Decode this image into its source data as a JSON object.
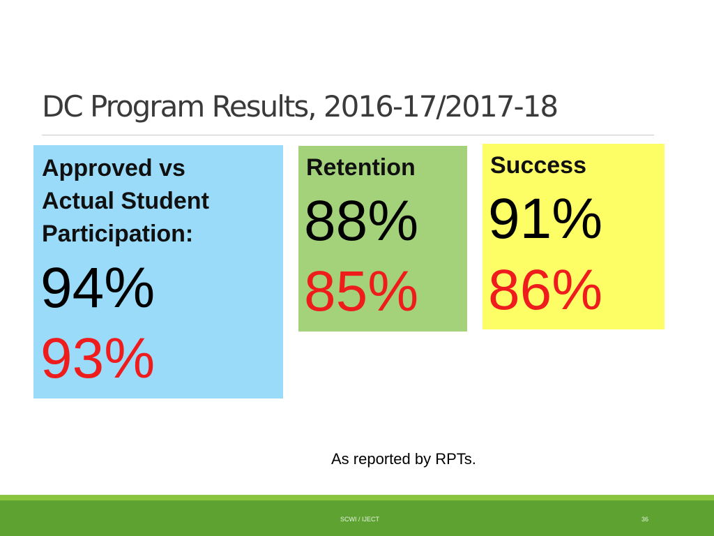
{
  "title": "DC Program Results, 2016-17/2017-18",
  "boxes": {
    "participation": {
      "label_lines": [
        "Approved vs",
        "Actual Student",
        "Participation:"
      ],
      "value_black": "94%",
      "value_red": "93%",
      "color": "#99dbf9"
    },
    "retention": {
      "label": "Retention",
      "value_black": "88%",
      "value_red": "85%",
      "color": "#a4d27b"
    },
    "success": {
      "label": "Success",
      "value_black": "91%",
      "value_red": "86%",
      "color": "#fdfd66"
    }
  },
  "footnote": "As reported by RPTs.",
  "footer": {
    "center": "SCWI / IJECT",
    "page": "36"
  },
  "colors": {
    "red_value": "#ee1c1c",
    "footer_green": "#5ea232"
  }
}
